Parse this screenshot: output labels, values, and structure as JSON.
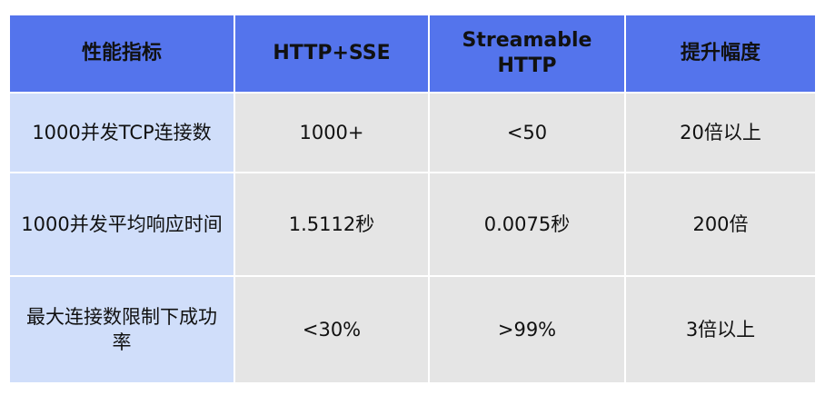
{
  "table": {
    "headers": [
      "性能指标",
      "HTTP+SSE",
      "Streamable HTTP",
      "提升幅度"
    ],
    "rows": [
      [
        "1000并发TCP连接数",
        "1000+",
        "<50",
        "20倍以上"
      ],
      [
        "1000并发平均响应时间",
        "1.5112秒",
        "0.0075秒",
        "200倍"
      ],
      [
        "最大连接数限制下成功率",
        "<30%",
        ">99%",
        "3倍以上"
      ]
    ]
  },
  "colors": {
    "header": "#5474EC",
    "first_column": "#D0DEFA",
    "cell": "#E5E5E5"
  }
}
